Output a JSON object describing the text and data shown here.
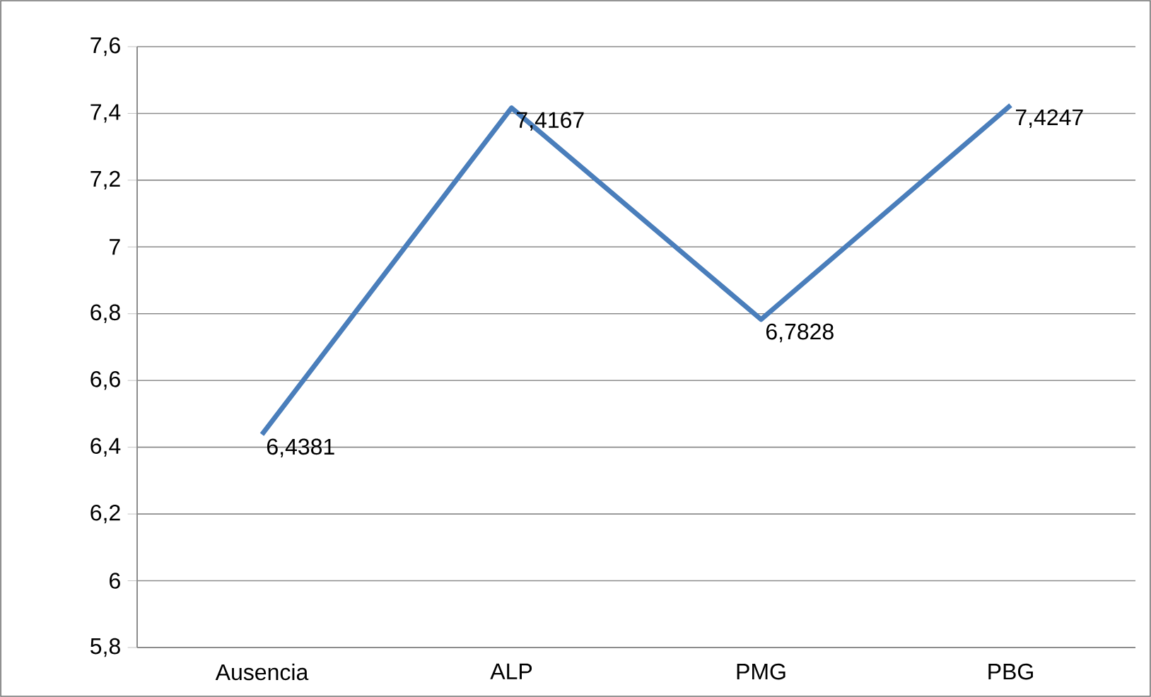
{
  "chart_data": {
    "type": "line",
    "categories": [
      "Ausencia",
      "ALP",
      "PMG",
      "PBG"
    ],
    "series": [
      {
        "color": "#4a7ebb",
        "values": [
          6.4381,
          7.4167,
          6.7828,
          7.4247
        ],
        "value_labels": [
          "6,4381",
          "7,4167",
          "6,7828",
          "7,4247"
        ]
      }
    ],
    "ylim": [
      5.8,
      7.6
    ],
    "yticks": [
      {
        "value": 5.8,
        "label": "5,8"
      },
      {
        "value": 6,
        "label": "6"
      },
      {
        "value": 6.2,
        "label": "6,2"
      },
      {
        "value": 6.4,
        "label": "6,4"
      },
      {
        "value": 6.6,
        "label": "6,6"
      },
      {
        "value": 6.8,
        "label": "6,8"
      },
      {
        "value": 7,
        "label": "7"
      },
      {
        "value": 7.2,
        "label": "7,2"
      },
      {
        "value": 7.4,
        "label": "7,4"
      },
      {
        "value": 7.6,
        "label": "7,6"
      }
    ],
    "grid": "y",
    "marker": "none",
    "line_style": "solid"
  }
}
